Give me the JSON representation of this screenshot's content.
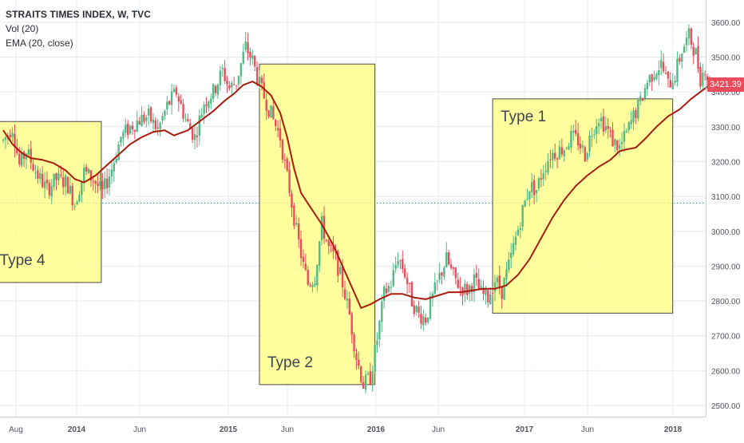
{
  "legend": {
    "title": "STRAITS TIMES INDEX, W, TVC",
    "line2": "Vol (20)",
    "line3": "EMA (20, close)"
  },
  "last_price": "3421.39",
  "colors": {
    "up": "#53b987",
    "down": "#eb4d5c",
    "ema": "#a81c0c",
    "box_fill": "#ffff7d",
    "box_border": "#4a4a4a",
    "grid": "#e1ecf2",
    "hline": "#2e8b8b",
    "axis_text": "#50535e",
    "badge": "#eb4d5c"
  },
  "chart_data": {
    "type": "candlestick",
    "title": "STRAITS TIMES INDEX, W, TVC",
    "y_ticks": [
      "2500.00",
      "2600.00",
      "2700.00",
      "2800.00",
      "2900.00",
      "3000.00",
      "3100.00",
      "3200.00",
      "3300.00",
      "3400.00",
      "3500.00",
      "3600.00"
    ],
    "x_ticks": [
      "Aug",
      "2014",
      "Jun",
      "2015",
      "Jun",
      "2016",
      "Jun",
      "2017",
      "Jun",
      "2018"
    ],
    "ylim": [
      2480,
      3630
    ],
    "reference_level": 3081,
    "price_path": [
      [
        0,
        3260
      ],
      [
        8,
        3300
      ],
      [
        14,
        3190
      ],
      [
        20,
        3230
      ],
      [
        30,
        3160
      ],
      [
        38,
        3120
      ],
      [
        46,
        3150
      ],
      [
        55,
        3140
      ],
      [
        62,
        3080
      ],
      [
        70,
        3170
      ],
      [
        78,
        3150
      ],
      [
        86,
        3110
      ],
      [
        94,
        3180
      ],
      [
        102,
        3270
      ],
      [
        110,
        3300
      ],
      [
        118,
        3320
      ],
      [
        126,
        3330
      ],
      [
        134,
        3290
      ],
      [
        142,
        3360
      ],
      [
        150,
        3400
      ],
      [
        158,
        3320
      ],
      [
        166,
        3270
      ],
      [
        174,
        3370
      ],
      [
        182,
        3400
      ],
      [
        190,
        3460
      ],
      [
        196,
        3410
      ],
      [
        202,
        3430
      ],
      [
        210,
        3530
      ],
      [
        216,
        3490
      ],
      [
        222,
        3420
      ],
      [
        228,
        3370
      ],
      [
        234,
        3320
      ],
      [
        240,
        3270
      ],
      [
        244,
        3190
      ],
      [
        248,
        3120
      ],
      [
        254,
        3000
      ],
      [
        260,
        2900
      ],
      [
        264,
        2850
      ],
      [
        270,
        2870
      ],
      [
        276,
        3020
      ],
      [
        282,
        2950
      ],
      [
        288,
        2920
      ],
      [
        294,
        2850
      ],
      [
        300,
        2760
      ],
      [
        306,
        2640
      ],
      [
        312,
        2560
      ],
      [
        318,
        2580
      ],
      [
        324,
        2690
      ],
      [
        330,
        2820
      ],
      [
        336,
        2850
      ],
      [
        342,
        2930
      ],
      [
        348,
        2880
      ],
      [
        354,
        2800
      ],
      [
        360,
        2760
      ],
      [
        366,
        2750
      ],
      [
        372,
        2810
      ],
      [
        378,
        2870
      ],
      [
        384,
        2920
      ],
      [
        390,
        2870
      ],
      [
        396,
        2840
      ],
      [
        402,
        2830
      ],
      [
        408,
        2860
      ],
      [
        414,
        2820
      ],
      [
        420,
        2810
      ],
      [
        426,
        2860
      ],
      [
        432,
        2830
      ],
      [
        438,
        2900
      ],
      [
        444,
        2980
      ],
      [
        450,
        3060
      ],
      [
        456,
        3130
      ],
      [
        462,
        3120
      ],
      [
        468,
        3180
      ],
      [
        474,
        3220
      ],
      [
        480,
        3230
      ],
      [
        486,
        3240
      ],
      [
        492,
        3270
      ],
      [
        498,
        3260
      ],
      [
        504,
        3220
      ],
      [
        510,
        3290
      ],
      [
        516,
        3330
      ],
      [
        522,
        3300
      ],
      [
        528,
        3260
      ],
      [
        534,
        3240
      ],
      [
        540,
        3280
      ],
      [
        546,
        3330
      ],
      [
        552,
        3370
      ],
      [
        558,
        3430
      ],
      [
        564,
        3460
      ],
      [
        570,
        3480
      ],
      [
        576,
        3420
      ],
      [
        582,
        3450
      ],
      [
        588,
        3520
      ],
      [
        594,
        3560
      ],
      [
        600,
        3510
      ],
      [
        604,
        3440
      ],
      [
        608,
        3470
      ],
      [
        612,
        3421.39
      ]
    ],
    "ema_path": [
      [
        0,
        3290
      ],
      [
        8,
        3250
      ],
      [
        16,
        3225
      ],
      [
        24,
        3210
      ],
      [
        34,
        3205
      ],
      [
        44,
        3195
      ],
      [
        54,
        3175
      ],
      [
        62,
        3150
      ],
      [
        70,
        3140
      ],
      [
        80,
        3160
      ],
      [
        90,
        3190
      ],
      [
        100,
        3220
      ],
      [
        110,
        3250
      ],
      [
        120,
        3270
      ],
      [
        130,
        3285
      ],
      [
        140,
        3290
      ],
      [
        148,
        3275
      ],
      [
        160,
        3290
      ],
      [
        172,
        3320
      ],
      [
        182,
        3345
      ],
      [
        192,
        3375
      ],
      [
        200,
        3395
      ],
      [
        208,
        3420
      ],
      [
        216,
        3430
      ],
      [
        224,
        3415
      ],
      [
        232,
        3390
      ],
      [
        240,
        3340
      ],
      [
        246,
        3270
      ],
      [
        252,
        3180
      ],
      [
        258,
        3110
      ],
      [
        266,
        3070
      ],
      [
        276,
        3020
      ],
      [
        286,
        2960
      ],
      [
        294,
        2900
      ],
      [
        302,
        2840
      ],
      [
        310,
        2780
      ],
      [
        318,
        2790
      ],
      [
        326,
        2805
      ],
      [
        336,
        2820
      ],
      [
        346,
        2820
      ],
      [
        356,
        2810
      ],
      [
        366,
        2805
      ],
      [
        376,
        2815
      ],
      [
        386,
        2825
      ],
      [
        396,
        2825
      ],
      [
        406,
        2830
      ],
      [
        416,
        2835
      ],
      [
        426,
        2835
      ],
      [
        436,
        2845
      ],
      [
        446,
        2875
      ],
      [
        456,
        2920
      ],
      [
        466,
        2980
      ],
      [
        476,
        3040
      ],
      [
        486,
        3090
      ],
      [
        496,
        3130
      ],
      [
        506,
        3160
      ],
      [
        516,
        3185
      ],
      [
        526,
        3205
      ],
      [
        534,
        3230
      ],
      [
        540,
        3235
      ],
      [
        548,
        3240
      ],
      [
        556,
        3265
      ],
      [
        566,
        3300
      ],
      [
        576,
        3330
      ],
      [
        586,
        3350
      ],
      [
        596,
        3380
      ],
      [
        604,
        3400
      ],
      [
        612,
        3420
      ]
    ],
    "regions": [
      {
        "label": "Type 4",
        "t": [
          -10,
          85
        ],
        "price": [
          2853,
          3315
        ]
      },
      {
        "label": "Type 2",
        "t": [
          222,
          322
        ],
        "price": [
          2560,
          3480
        ]
      },
      {
        "label": "Type 1",
        "t": [
          424,
          580
        ],
        "price": [
          2765,
          3380
        ]
      }
    ]
  }
}
